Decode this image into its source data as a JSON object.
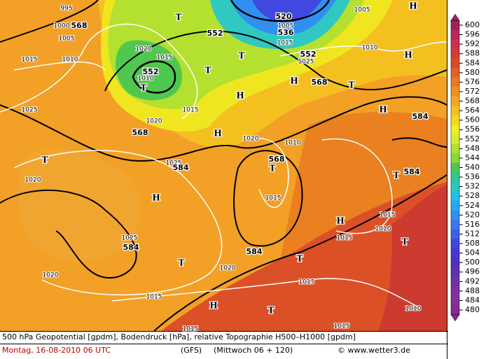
{
  "colorbar": {
    "labels": [
      600,
      596,
      592,
      588,
      584,
      580,
      576,
      572,
      568,
      564,
      560,
      556,
      552,
      548,
      544,
      540,
      536,
      532,
      528,
      524,
      520,
      516,
      512,
      508,
      504,
      500,
      496,
      492,
      488,
      484,
      480
    ],
    "colors": [
      "#a0205a",
      "#b8285c",
      "#cc3050",
      "#d43c32",
      "#dc4a28",
      "#e4602a",
      "#ea7a20",
      "#f09020",
      "#f4a820",
      "#f4c020",
      "#f4d818",
      "#f0ee20",
      "#d4ee30",
      "#b0e030",
      "#88d838",
      "#50c850",
      "#30c890",
      "#28c8c0",
      "#20c0e8",
      "#28a8f0",
      "#3090f0",
      "#3878f0",
      "#3c60e8",
      "#4048e0",
      "#4838d0",
      "#5030c0",
      "#6030b0",
      "#7030a8",
      "#8030a0",
      "#883098",
      "#882898"
    ]
  },
  "map": {
    "geopotential_labels": [
      568,
      552,
      520,
      536,
      552,
      552,
      568,
      568,
      584,
      568,
      584,
      584,
      584,
      584
    ],
    "pressure_labels": [
      995,
      1000,
      1005,
      1015,
      1010,
      1020,
      1015,
      1010,
      1015,
      1020,
      1025,
      1020,
      1010,
      1025,
      1015,
      1020,
      1025,
      1020,
      1015,
      1020,
      1015,
      1015,
      1010,
      1015,
      1010,
      1015,
      1015,
      1005,
      1010,
      1025,
      1015,
      1005
    ],
    "pressure_centers": [
      "H",
      "T",
      "T",
      "T",
      "H",
      "H",
      "T",
      "H",
      "H",
      "T",
      "H",
      "T",
      "H",
      "H",
      "T",
      "T",
      "H",
      "T",
      "T",
      "T",
      "T"
    ]
  },
  "footer": {
    "description": "500 hPa Geopotential [gpdm], Bodendruck [hPa], relative Topographie H500–H1000 [gpdm]",
    "date": "Montag, 16-08-2010  06 UTC",
    "model": "(GFS)",
    "forecast": "(Mittwoch 06 + 120)",
    "credit": "© www.wetter3.de"
  }
}
